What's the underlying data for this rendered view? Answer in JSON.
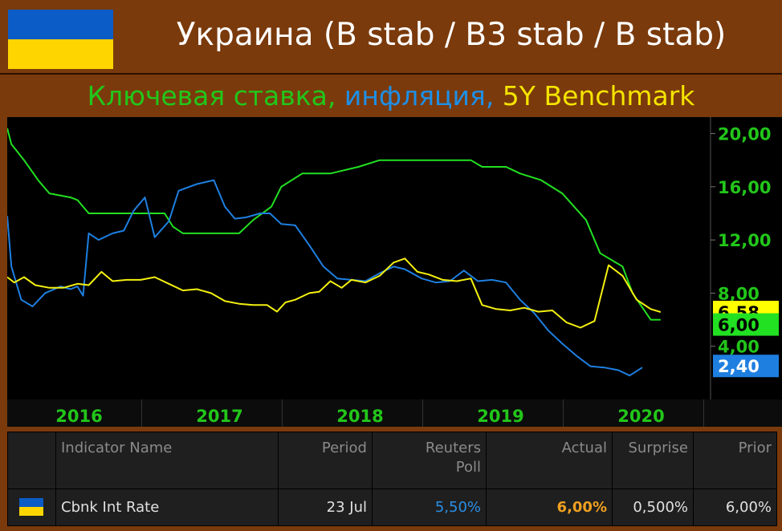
{
  "header": {
    "title": "Украина (B stab / B3 stab / B stab)",
    "flag_colors": [
      "#0b5cc6",
      "#ffd500"
    ]
  },
  "subtitle": {
    "parts": [
      {
        "text": "Ключевая ставка, ",
        "color": "#22c61a"
      },
      {
        "text": "инфляция, ",
        "color": "#1e8fe6"
      },
      {
        "text": "5Y Benchmark",
        "color": "#f5e400"
      }
    ]
  },
  "colors": {
    "key_rate": "#22e022",
    "inflation": "#1e7fe0",
    "benchmark": "#f4f010",
    "axis_text": "#22c61a"
  },
  "chart_data": {
    "type": "line",
    "title": "",
    "xlabel": "",
    "ylabel": "",
    "ylim": [
      0,
      21
    ],
    "y_ticks": [
      "20,00",
      "16,00",
      "12,00",
      "8,00",
      "4,00"
    ],
    "y_tick_values": [
      20,
      16,
      12,
      8,
      4
    ],
    "x_tick_labels": [
      "2016",
      "2017",
      "2018",
      "2019",
      "2020"
    ],
    "x_tick_values": [
      2016.0,
      2017.0,
      2018.0,
      2019.0,
      2020.0
    ],
    "xlim": [
      2015.5,
      2020.5
    ],
    "grid": false,
    "last_value_labels": [
      {
        "series": "5Y Benchmark",
        "text": "6,58",
        "value": 6.58,
        "color": "#ffff00",
        "text_color": "#000000"
      },
      {
        "series": "Ключевая ставка",
        "text": "6,00",
        "value": 6.0,
        "color": "#22e022",
        "text_color": "#000000"
      },
      {
        "series": "инфляция",
        "text": "2,40",
        "value": 2.4,
        "color": "#1e7fe0",
        "text_color": "#ffffff"
      }
    ],
    "series": [
      {
        "name": "Ключевая ставка",
        "color": "#22e022",
        "points": [
          [
            2015.5,
            20.4
          ],
          [
            2015.53,
            19.2
          ],
          [
            2015.62,
            18.0
          ],
          [
            2015.72,
            16.5
          ],
          [
            2015.8,
            15.5
          ],
          [
            2015.95,
            15.2
          ],
          [
            2016.0,
            15.0
          ],
          [
            2016.08,
            14.0
          ],
          [
            2016.25,
            14.0
          ],
          [
            2016.5,
            14.0
          ],
          [
            2016.62,
            14.0
          ],
          [
            2016.68,
            13.0
          ],
          [
            2016.75,
            12.5
          ],
          [
            2016.95,
            12.5
          ],
          [
            2017.15,
            12.5
          ],
          [
            2017.25,
            13.5
          ],
          [
            2017.38,
            14.5
          ],
          [
            2017.45,
            16.0
          ],
          [
            2017.6,
            17.0
          ],
          [
            2017.8,
            17.0
          ],
          [
            2018.0,
            17.5
          ],
          [
            2018.15,
            18.0
          ],
          [
            2018.35,
            18.0
          ],
          [
            2018.6,
            18.0
          ],
          [
            2018.8,
            18.0
          ],
          [
            2018.88,
            17.5
          ],
          [
            2019.05,
            17.5
          ],
          [
            2019.15,
            17.0
          ],
          [
            2019.3,
            16.5
          ],
          [
            2019.45,
            15.5
          ],
          [
            2019.62,
            13.5
          ],
          [
            2019.72,
            11.0
          ],
          [
            2019.88,
            10.0
          ],
          [
            2019.95,
            8.0
          ],
          [
            2020.08,
            6.0
          ],
          [
            2020.15,
            6.0
          ]
        ]
      },
      {
        "name": "инфляция",
        "color": "#1e7fe0",
        "points": [
          [
            2015.5,
            13.8
          ],
          [
            2015.53,
            10.0
          ],
          [
            2015.6,
            7.5
          ],
          [
            2015.68,
            7.0
          ],
          [
            2015.77,
            8.0
          ],
          [
            2015.88,
            8.5
          ],
          [
            2015.95,
            8.3
          ],
          [
            2016.0,
            8.5
          ],
          [
            2016.04,
            7.8
          ],
          [
            2016.08,
            12.5
          ],
          [
            2016.15,
            12.0
          ],
          [
            2016.25,
            12.5
          ],
          [
            2016.33,
            12.7
          ],
          [
            2016.4,
            14.2
          ],
          [
            2016.48,
            15.2
          ],
          [
            2016.55,
            12.2
          ],
          [
            2016.65,
            13.4
          ],
          [
            2016.72,
            15.7
          ],
          [
            2016.85,
            16.2
          ],
          [
            2016.97,
            16.5
          ],
          [
            2017.05,
            14.5
          ],
          [
            2017.12,
            13.6
          ],
          [
            2017.2,
            13.7
          ],
          [
            2017.3,
            14.0
          ],
          [
            2017.37,
            14.0
          ],
          [
            2017.45,
            13.2
          ],
          [
            2017.55,
            13.1
          ],
          [
            2017.65,
            11.6
          ],
          [
            2017.75,
            10.0
          ],
          [
            2017.85,
            9.1
          ],
          [
            2017.95,
            9.0
          ],
          [
            2018.05,
            8.9
          ],
          [
            2018.15,
            9.5
          ],
          [
            2018.25,
            10.0
          ],
          [
            2018.33,
            9.8
          ],
          [
            2018.45,
            9.1
          ],
          [
            2018.55,
            8.8
          ],
          [
            2018.65,
            8.9
          ],
          [
            2018.75,
            9.7
          ],
          [
            2018.85,
            8.9
          ],
          [
            2018.95,
            9.0
          ],
          [
            2019.05,
            8.8
          ],
          [
            2019.15,
            7.5
          ],
          [
            2019.25,
            6.5
          ],
          [
            2019.35,
            5.2
          ],
          [
            2019.45,
            4.2
          ],
          [
            2019.55,
            3.3
          ],
          [
            2019.65,
            2.5
          ],
          [
            2019.75,
            2.4
          ],
          [
            2019.85,
            2.2
          ],
          [
            2019.93,
            1.8
          ],
          [
            2020.02,
            2.4
          ]
        ]
      },
      {
        "name": "5Y Benchmark",
        "color": "#f4f010",
        "points": [
          [
            2015.5,
            9.2
          ],
          [
            2015.55,
            8.8
          ],
          [
            2015.62,
            9.2
          ],
          [
            2015.7,
            8.6
          ],
          [
            2015.8,
            8.4
          ],
          [
            2015.9,
            8.4
          ],
          [
            2016.0,
            8.7
          ],
          [
            2016.08,
            8.6
          ],
          [
            2016.17,
            9.6
          ],
          [
            2016.25,
            8.9
          ],
          [
            2016.35,
            9.0
          ],
          [
            2016.45,
            9.0
          ],
          [
            2016.55,
            9.2
          ],
          [
            2016.65,
            8.7
          ],
          [
            2016.75,
            8.2
          ],
          [
            2016.85,
            8.3
          ],
          [
            2016.95,
            8.0
          ],
          [
            2017.05,
            7.4
          ],
          [
            2017.15,
            7.2
          ],
          [
            2017.25,
            7.1
          ],
          [
            2017.35,
            7.1
          ],
          [
            2017.42,
            6.6
          ],
          [
            2017.48,
            7.3
          ],
          [
            2017.55,
            7.5
          ],
          [
            2017.65,
            8.0
          ],
          [
            2017.72,
            8.1
          ],
          [
            2017.8,
            8.9
          ],
          [
            2017.88,
            8.4
          ],
          [
            2017.95,
            9.0
          ],
          [
            2018.05,
            8.8
          ],
          [
            2018.15,
            9.3
          ],
          [
            2018.25,
            10.3
          ],
          [
            2018.33,
            10.6
          ],
          [
            2018.42,
            9.6
          ],
          [
            2018.5,
            9.4
          ],
          [
            2018.6,
            9.0
          ],
          [
            2018.7,
            8.9
          ],
          [
            2018.8,
            9.1
          ],
          [
            2018.88,
            7.1
          ],
          [
            2018.98,
            6.8
          ],
          [
            2019.08,
            6.7
          ],
          [
            2019.18,
            6.9
          ],
          [
            2019.28,
            6.6
          ],
          [
            2019.38,
            6.7
          ],
          [
            2019.48,
            5.8
          ],
          [
            2019.58,
            5.4
          ],
          [
            2019.68,
            5.9
          ],
          [
            2019.78,
            10.1
          ],
          [
            2019.88,
            9.3
          ],
          [
            2019.98,
            7.5
          ],
          [
            2020.08,
            6.8
          ],
          [
            2020.15,
            6.58
          ]
        ]
      }
    ]
  },
  "table": {
    "headers": [
      "Indicator Name",
      "Period",
      "Reuters Poll",
      "Actual",
      "Surprise",
      "Prior"
    ],
    "header_poll_line1": "Reuters",
    "header_poll_line2": "Poll",
    "row": {
      "name": "Cbnk Int Rate",
      "period": "23 Jul",
      "poll": "5,50%",
      "actual": "6,00%",
      "surprise": "0,500%",
      "prior": "6,00%"
    },
    "poll_color": "#2a8fe6",
    "actual_color": "#f0a020"
  }
}
